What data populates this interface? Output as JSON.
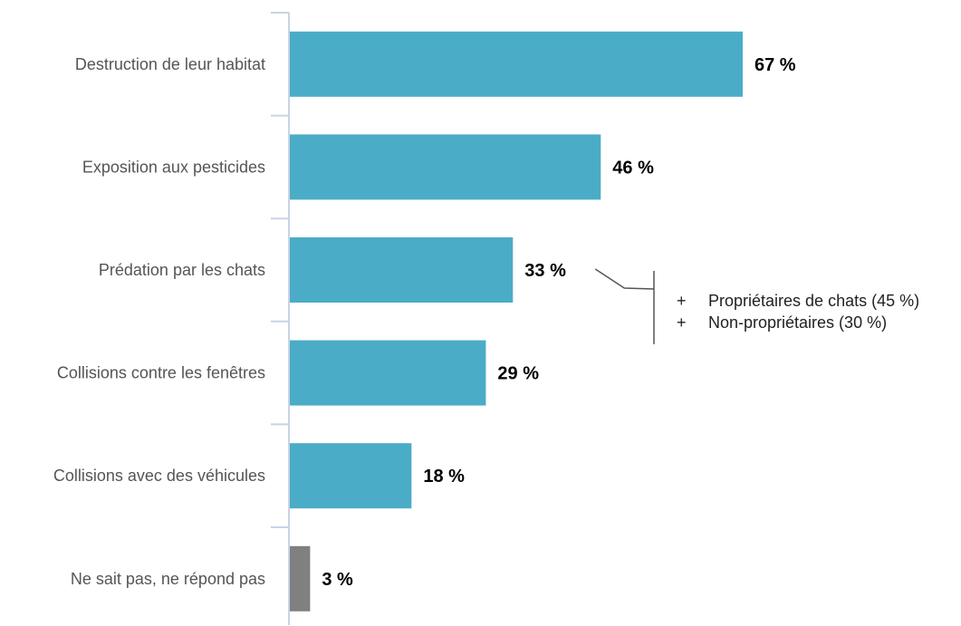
{
  "chart_data": {
    "type": "bar",
    "orientation": "horizontal",
    "categories": [
      "Destruction de leur habitat",
      "Exposition aux pesticides",
      "Prédation par les chats",
      "Collisions contre les fenêtres",
      "Collisions avec des véhicules",
      "Ne sait pas, ne répond pas"
    ],
    "values": [
      67,
      46,
      33,
      29,
      18,
      3
    ],
    "value_labels": [
      "67 %",
      "46 %",
      "33 %",
      "29 %",
      "18 %",
      "3 %"
    ],
    "bar_colors": [
      "#4aacc6",
      "#4aacc6",
      "#4aacc6",
      "#4aacc6",
      "#4aacc6",
      "#808080"
    ],
    "xlim": [
      0,
      100
    ],
    "grid": false,
    "legend": "none",
    "annotation": {
      "category": "Prédation par les chats",
      "lines": [
        {
          "prefix": "+",
          "text": "Propriétaires de chats (45 %)"
        },
        {
          "prefix": "+",
          "text": "Non-propriétaires (30 %)"
        }
      ]
    }
  },
  "colors": {
    "axis": "#c9d3e6",
    "primary_bar": "#4aacc6",
    "dont_know_bar": "#808080",
    "bracket": "#555555"
  }
}
